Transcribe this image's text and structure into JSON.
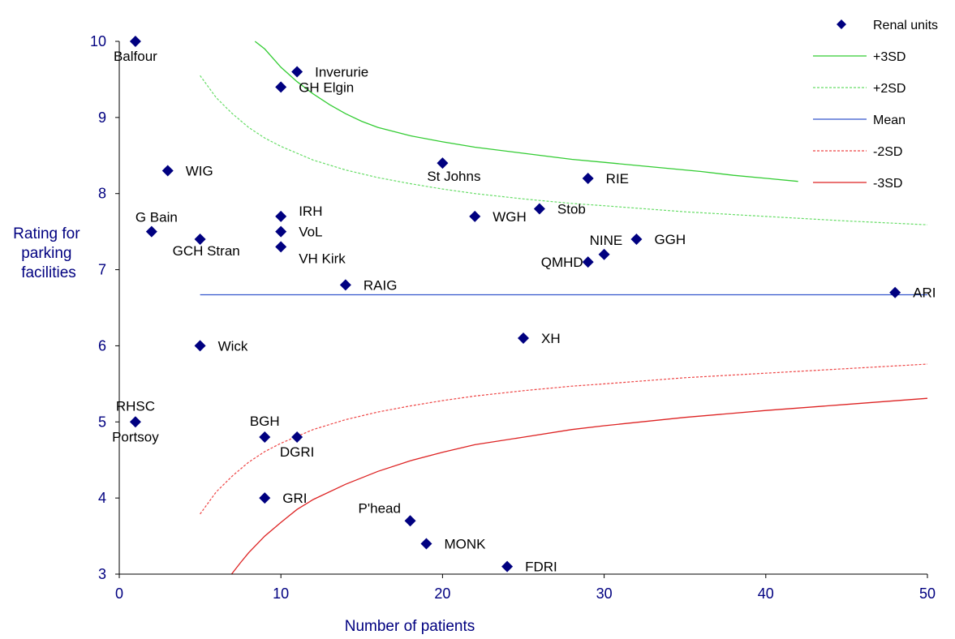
{
  "chart_data": {
    "type": "scatter",
    "title": "",
    "xlabel": "Number of patients",
    "ylabel": [
      "Rating for",
      "parking",
      "facilities"
    ],
    "xlim": [
      0,
      50
    ],
    "ylim": [
      3,
      10
    ],
    "xticks": [
      0,
      10,
      20,
      30,
      40,
      50
    ],
    "yticks": [
      3,
      4,
      5,
      6,
      7,
      8,
      9,
      10
    ],
    "grid": false,
    "legend_position": "top-right",
    "colors": {
      "points": "#000080",
      "axis_text": "#000080",
      "sd3": "#33cc33",
      "sd2": "#66dd66",
      "mean": "#3355cc",
      "minus2": "#ee4444",
      "minus3": "#dd2222"
    },
    "mean": 6.67,
    "legend": [
      {
        "key": "points",
        "label": "Renal units"
      },
      {
        "key": "plus3",
        "label": "+3SD"
      },
      {
        "key": "plus2",
        "label": "+2SD"
      },
      {
        "key": "mean",
        "label": "Mean"
      },
      {
        "key": "minus2",
        "label": "-2SD"
      },
      {
        "key": "minus3",
        "label": "-3SD"
      }
    ],
    "limits": {
      "plus3": {
        "x": [
          8.4,
          9,
          10,
          11,
          12,
          13,
          14,
          15,
          16,
          18,
          20,
          22,
          25,
          28,
          30,
          33,
          36,
          38,
          40,
          42
        ],
        "y": [
          10,
          9.9,
          9.66,
          9.47,
          9.31,
          9.17,
          9.05,
          8.95,
          8.87,
          8.76,
          8.68,
          8.61,
          8.53,
          8.45,
          8.41,
          8.35,
          8.29,
          8.24,
          8.2,
          8.16
        ]
      },
      "plus2": {
        "x": [
          5,
          6,
          7,
          8,
          9,
          10,
          12,
          14,
          16,
          18,
          20,
          22,
          25,
          28,
          30,
          35,
          40,
          45,
          50
        ],
        "y": [
          9.55,
          9.26,
          9.05,
          8.87,
          8.73,
          8.62,
          8.44,
          8.31,
          8.21,
          8.13,
          8.06,
          8.0,
          7.93,
          7.87,
          7.84,
          7.76,
          7.7,
          7.64,
          7.59
        ]
      },
      "mean": {
        "x": [
          5,
          50
        ],
        "y": [
          6.67,
          6.67
        ]
      },
      "minus2": {
        "x": [
          5,
          6,
          7,
          8,
          9,
          10,
          12,
          14,
          16,
          18,
          20,
          22,
          25,
          28,
          30,
          35,
          40,
          45,
          50
        ],
        "y": [
          3.79,
          4.08,
          4.29,
          4.47,
          4.61,
          4.72,
          4.9,
          5.03,
          5.13,
          5.21,
          5.28,
          5.34,
          5.41,
          5.47,
          5.5,
          5.58,
          5.64,
          5.7,
          5.76
        ]
      },
      "minus3": {
        "x": [
          6.95,
          7.5,
          8,
          9,
          10,
          11,
          12,
          14,
          16,
          18,
          20,
          22,
          25,
          28,
          30,
          35,
          40,
          45,
          50
        ],
        "y": [
          3.0,
          3.15,
          3.28,
          3.5,
          3.68,
          3.85,
          3.98,
          4.18,
          4.35,
          4.49,
          4.6,
          4.7,
          4.8,
          4.9,
          4.95,
          5.06,
          5.15,
          5.23,
          5.31
        ]
      }
    },
    "series": [
      {
        "name": "Renal units",
        "points": [
          {
            "x": 1,
            "y": 10,
            "label": "Balfour",
            "pos": "below"
          },
          {
            "x": 11,
            "y": 9.6,
            "label": "Inverurie",
            "pos": "right"
          },
          {
            "x": 10,
            "y": 9.4,
            "label": "GH Elgin",
            "pos": "right"
          },
          {
            "x": 3,
            "y": 8.3,
            "label": "WIG",
            "pos": "right"
          },
          {
            "x": 20,
            "y": 8.4,
            "label": "St Johns",
            "pos": "below"
          },
          {
            "x": 29,
            "y": 8.2,
            "label": "RIE",
            "pos": "right"
          },
          {
            "x": 2,
            "y": 7.5,
            "label": "G Bain",
            "pos": "aboveleft"
          },
          {
            "x": 5,
            "y": 7.4,
            "label": "GCH Stran",
            "pos": "belowright"
          },
          {
            "x": 10,
            "y": 7.7,
            "label": "IRH",
            "pos": "aboveright"
          },
          {
            "x": 10,
            "y": 7.5,
            "label": "VoL",
            "pos": "right"
          },
          {
            "x": 10,
            "y": 7.3,
            "label": "VH Kirk",
            "pos": "belowright"
          },
          {
            "x": 22,
            "y": 7.7,
            "label": "WGH",
            "pos": "right"
          },
          {
            "x": 26,
            "y": 7.8,
            "label": "Stob",
            "pos": "right"
          },
          {
            "x": 32,
            "y": 7.4,
            "label": "GGH",
            "pos": "right"
          },
          {
            "x": 30,
            "y": 7.2,
            "label": "NINE",
            "pos": "aboveleft"
          },
          {
            "x": 29,
            "y": 7.1,
            "label": "QMHD",
            "pos": "left"
          },
          {
            "x": 14,
            "y": 6.8,
            "label": "RAIG",
            "pos": "right"
          },
          {
            "x": 48,
            "y": 6.7,
            "label": "ARI",
            "pos": "right"
          },
          {
            "x": 25,
            "y": 6.1,
            "label": "XH",
            "pos": "right"
          },
          {
            "x": 5,
            "y": 6.0,
            "label": "Wick",
            "pos": "right"
          },
          {
            "x": 1,
            "y": 5.0,
            "label": "RHSC",
            "pos": "above"
          },
          {
            "x": 1,
            "y": 5.0,
            "label": "Portsoy",
            "pos": "below"
          },
          {
            "x": 9,
            "y": 4.8,
            "label": "BGH",
            "pos": "above"
          },
          {
            "x": 11,
            "y": 4.8,
            "label": "DGRI",
            "pos": "below"
          },
          {
            "x": 9,
            "y": 4.0,
            "label": "GRI",
            "pos": "right"
          },
          {
            "x": 18,
            "y": 3.7,
            "label": "P'head",
            "pos": "aboveleft"
          },
          {
            "x": 19,
            "y": 3.4,
            "label": "MONK",
            "pos": "right"
          },
          {
            "x": 24,
            "y": 3.1,
            "label": "FDRI",
            "pos": "right"
          }
        ]
      }
    ]
  }
}
